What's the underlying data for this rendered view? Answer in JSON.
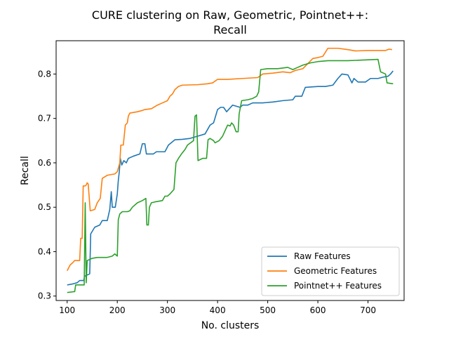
{
  "chart_data": {
    "type": "line",
    "title_lines": [
      "CURE clustering on Raw, Geometric, Pointnet++:",
      "Recall"
    ],
    "xlabel": "No. clusters",
    "ylabel": "Recall",
    "xlim": [
      78,
      772
    ],
    "ylim": [
      0.29,
      0.875
    ],
    "xticks": [
      100,
      200,
      300,
      400,
      500,
      600,
      700
    ],
    "yticks": [
      0.3,
      0.4,
      0.5,
      0.6,
      0.7,
      0.8
    ],
    "legend_position": "lower-right",
    "grid": false,
    "series": [
      {
        "name": "Raw Features",
        "color": "#1f77b4",
        "points": [
          [
            100,
            0.325
          ],
          [
            110,
            0.327
          ],
          [
            120,
            0.33
          ],
          [
            125,
            0.335
          ],
          [
            133,
            0.335
          ],
          [
            135,
            0.345
          ],
          [
            145,
            0.35
          ],
          [
            147,
            0.44
          ],
          [
            155,
            0.455
          ],
          [
            165,
            0.46
          ],
          [
            170,
            0.47
          ],
          [
            180,
            0.47
          ],
          [
            185,
            0.495
          ],
          [
            188,
            0.535
          ],
          [
            190,
            0.5
          ],
          [
            196,
            0.5
          ],
          [
            200,
            0.53
          ],
          [
            202,
            0.56
          ],
          [
            204,
            0.58
          ],
          [
            206,
            0.61
          ],
          [
            209,
            0.595
          ],
          [
            213,
            0.605
          ],
          [
            218,
            0.6
          ],
          [
            222,
            0.61
          ],
          [
            232,
            0.615
          ],
          [
            245,
            0.62
          ],
          [
            250,
            0.643
          ],
          [
            255,
            0.643
          ],
          [
            258,
            0.62
          ],
          [
            272,
            0.62
          ],
          [
            278,
            0.625
          ],
          [
            295,
            0.625
          ],
          [
            302,
            0.64
          ],
          [
            315,
            0.652
          ],
          [
            330,
            0.653
          ],
          [
            345,
            0.655
          ],
          [
            360,
            0.66
          ],
          [
            375,
            0.665
          ],
          [
            385,
            0.685
          ],
          [
            392,
            0.69
          ],
          [
            400,
            0.72
          ],
          [
            406,
            0.725
          ],
          [
            412,
            0.725
          ],
          [
            418,
            0.715
          ],
          [
            430,
            0.73
          ],
          [
            445,
            0.725
          ],
          [
            450,
            0.73
          ],
          [
            460,
            0.73
          ],
          [
            470,
            0.735
          ],
          [
            490,
            0.735
          ],
          [
            510,
            0.737
          ],
          [
            530,
            0.74
          ],
          [
            550,
            0.742
          ],
          [
            555,
            0.75
          ],
          [
            568,
            0.75
          ],
          [
            575,
            0.77
          ],
          [
            600,
            0.772
          ],
          [
            615,
            0.772
          ],
          [
            630,
            0.775
          ],
          [
            640,
            0.79
          ],
          [
            648,
            0.8
          ],
          [
            660,
            0.798
          ],
          [
            668,
            0.78
          ],
          [
            672,
            0.79
          ],
          [
            680,
            0.782
          ],
          [
            695,
            0.782
          ],
          [
            705,
            0.79
          ],
          [
            720,
            0.79
          ],
          [
            730,
            0.793
          ],
          [
            740,
            0.795
          ],
          [
            745,
            0.8
          ],
          [
            750,
            0.807
          ]
        ]
      },
      {
        "name": "Geometric Features",
        "color": "#ff7f0e",
        "points": [
          [
            100,
            0.357
          ],
          [
            106,
            0.37
          ],
          [
            111,
            0.375
          ],
          [
            115,
            0.38
          ],
          [
            125,
            0.38
          ],
          [
            127,
            0.43
          ],
          [
            130,
            0.43
          ],
          [
            132,
            0.548
          ],
          [
            136,
            0.548
          ],
          [
            138,
            0.55
          ],
          [
            140,
            0.555
          ],
          [
            142,
            0.552
          ],
          [
            146,
            0.492
          ],
          [
            155,
            0.495
          ],
          [
            160,
            0.51
          ],
          [
            166,
            0.52
          ],
          [
            170,
            0.565
          ],
          [
            180,
            0.572
          ],
          [
            195,
            0.575
          ],
          [
            200,
            0.58
          ],
          [
            205,
            0.6
          ],
          [
            207,
            0.64
          ],
          [
            212,
            0.64
          ],
          [
            216,
            0.685
          ],
          [
            220,
            0.69
          ],
          [
            222,
            0.705
          ],
          [
            225,
            0.712
          ],
          [
            240,
            0.715
          ],
          [
            250,
            0.718
          ],
          [
            255,
            0.72
          ],
          [
            268,
            0.722
          ],
          [
            280,
            0.73
          ],
          [
            290,
            0.735
          ],
          [
            300,
            0.74
          ],
          [
            305,
            0.75
          ],
          [
            310,
            0.755
          ],
          [
            315,
            0.765
          ],
          [
            322,
            0.772
          ],
          [
            330,
            0.775
          ],
          [
            360,
            0.776
          ],
          [
            380,
            0.778
          ],
          [
            390,
            0.78
          ],
          [
            400,
            0.788
          ],
          [
            420,
            0.788
          ],
          [
            450,
            0.79
          ],
          [
            480,
            0.792
          ],
          [
            490,
            0.8
          ],
          [
            510,
            0.802
          ],
          [
            530,
            0.805
          ],
          [
            545,
            0.803
          ],
          [
            555,
            0.808
          ],
          [
            570,
            0.812
          ],
          [
            590,
            0.835
          ],
          [
            600,
            0.837
          ],
          [
            610,
            0.84
          ],
          [
            620,
            0.858
          ],
          [
            640,
            0.858
          ],
          [
            660,
            0.855
          ],
          [
            675,
            0.852
          ],
          [
            700,
            0.853
          ],
          [
            720,
            0.853
          ],
          [
            735,
            0.853
          ],
          [
            742,
            0.856
          ],
          [
            748,
            0.855
          ]
        ]
      },
      {
        "name": "Pointnet++ Features",
        "color": "#2ca02c",
        "points": [
          [
            100,
            0.308
          ],
          [
            115,
            0.31
          ],
          [
            117,
            0.325
          ],
          [
            134,
            0.325
          ],
          [
            136,
            0.51
          ],
          [
            138,
            0.33
          ],
          [
            140,
            0.38
          ],
          [
            150,
            0.385
          ],
          [
            160,
            0.387
          ],
          [
            180,
            0.387
          ],
          [
            190,
            0.39
          ],
          [
            195,
            0.395
          ],
          [
            200,
            0.39
          ],
          [
            202,
            0.472
          ],
          [
            205,
            0.485
          ],
          [
            210,
            0.49
          ],
          [
            220,
            0.49
          ],
          [
            225,
            0.492
          ],
          [
            230,
            0.5
          ],
          [
            240,
            0.51
          ],
          [
            250,
            0.515
          ],
          [
            257,
            0.52
          ],
          [
            259,
            0.46
          ],
          [
            262,
            0.46
          ],
          [
            264,
            0.5
          ],
          [
            268,
            0.51
          ],
          [
            275,
            0.512
          ],
          [
            290,
            0.515
          ],
          [
            295,
            0.525
          ],
          [
            300,
            0.525
          ],
          [
            305,
            0.53
          ],
          [
            313,
            0.54
          ],
          [
            317,
            0.6
          ],
          [
            322,
            0.61
          ],
          [
            328,
            0.62
          ],
          [
            335,
            0.63
          ],
          [
            340,
            0.64
          ],
          [
            352,
            0.65
          ],
          [
            355,
            0.705
          ],
          [
            358,
            0.708
          ],
          [
            361,
            0.605
          ],
          [
            370,
            0.61
          ],
          [
            378,
            0.61
          ],
          [
            381,
            0.652
          ],
          [
            385,
            0.655
          ],
          [
            392,
            0.65
          ],
          [
            395,
            0.645
          ],
          [
            403,
            0.65
          ],
          [
            410,
            0.66
          ],
          [
            420,
            0.685
          ],
          [
            425,
            0.683
          ],
          [
            428,
            0.69
          ],
          [
            432,
            0.685
          ],
          [
            437,
            0.67
          ],
          [
            441,
            0.67
          ],
          [
            443,
            0.71
          ],
          [
            448,
            0.74
          ],
          [
            460,
            0.742
          ],
          [
            470,
            0.745
          ],
          [
            478,
            0.75
          ],
          [
            482,
            0.76
          ],
          [
            486,
            0.81
          ],
          [
            500,
            0.812
          ],
          [
            520,
            0.812
          ],
          [
            540,
            0.815
          ],
          [
            550,
            0.81
          ],
          [
            560,
            0.815
          ],
          [
            570,
            0.82
          ],
          [
            585,
            0.825
          ],
          [
            600,
            0.828
          ],
          [
            620,
            0.83
          ],
          [
            660,
            0.83
          ],
          [
            680,
            0.831
          ],
          [
            700,
            0.832
          ],
          [
            720,
            0.833
          ],
          [
            725,
            0.805
          ],
          [
            735,
            0.8
          ],
          [
            738,
            0.78
          ],
          [
            750,
            0.778
          ]
        ]
      }
    ]
  }
}
